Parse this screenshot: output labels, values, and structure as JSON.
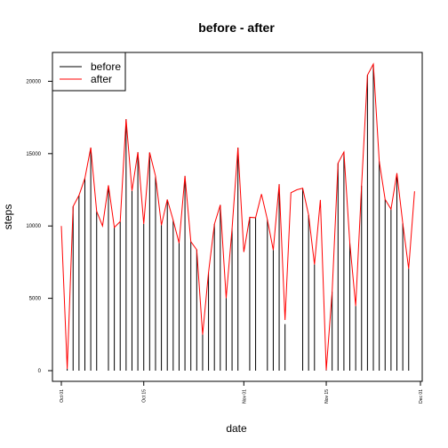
{
  "chart_data": {
    "type": "line",
    "title": "before - after",
    "xlabel": "date",
    "ylabel": "steps",
    "x": [
      "2012-10-01",
      "2012-10-02",
      "2012-10-03",
      "2012-10-04",
      "2012-10-05",
      "2012-10-06",
      "2012-10-07",
      "2012-10-08",
      "2012-10-09",
      "2012-10-10",
      "2012-10-11",
      "2012-10-12",
      "2012-10-13",
      "2012-10-14",
      "2012-10-15",
      "2012-10-16",
      "2012-10-17",
      "2012-10-18",
      "2012-10-19",
      "2012-10-20",
      "2012-10-21",
      "2012-10-22",
      "2012-10-23",
      "2012-10-24",
      "2012-10-25",
      "2012-10-26",
      "2012-10-27",
      "2012-10-28",
      "2012-10-29",
      "2012-10-30",
      "2012-10-31",
      "2012-11-01",
      "2012-11-02",
      "2012-11-03",
      "2012-11-04",
      "2012-11-05",
      "2012-11-06",
      "2012-11-07",
      "2012-11-08",
      "2012-11-09",
      "2012-11-10",
      "2012-11-11",
      "2012-11-12",
      "2012-11-13",
      "2012-11-14",
      "2012-11-15",
      "2012-11-16",
      "2012-11-17",
      "2012-11-18",
      "2012-11-19",
      "2012-11-20",
      "2012-11-21",
      "2012-11-22",
      "2012-11-23",
      "2012-11-24",
      "2012-11-25",
      "2012-11-26",
      "2012-11-27",
      "2012-11-28",
      "2012-11-29",
      "2012-11-30"
    ],
    "series": [
      {
        "name": "before",
        "color": "#000000",
        "style": "histogram",
        "values": [
          0,
          126,
          11352,
          12116,
          13294,
          15420,
          11015,
          0,
          12811,
          9900,
          10304,
          17382,
          12426,
          15098,
          10139,
          15084,
          13452,
          10056,
          11829,
          10395,
          8821,
          13460,
          8918,
          8355,
          2492,
          6778,
          10119,
          11458,
          5018,
          9819,
          15414,
          0,
          10600,
          10571,
          0,
          10439,
          8334,
          12883,
          3219,
          0,
          0,
          12608,
          10765,
          7336,
          0,
          41,
          5441,
          14339,
          15110,
          8841,
          4472,
          12787,
          20427,
          21194,
          14478,
          11834,
          11162,
          13646,
          10183,
          7047,
          0
        ]
      },
      {
        "name": "after",
        "color": "#ff0000",
        "style": "line",
        "values": [
          10000,
          126,
          11352,
          12116,
          13294,
          15420,
          11015,
          10000,
          12811,
          9900,
          10304,
          17382,
          12426,
          15098,
          10139,
          15084,
          13452,
          10056,
          11829,
          10395,
          8821,
          13460,
          8918,
          8355,
          2492,
          6778,
          10119,
          11458,
          5018,
          9819,
          15414,
          8200,
          10600,
          10571,
          12200,
          10439,
          8334,
          12883,
          3500,
          12300,
          12500,
          12608,
          10765,
          7336,
          11800,
          41,
          5441,
          14339,
          15110,
          8841,
          4472,
          12787,
          20427,
          21194,
          14478,
          11834,
          11162,
          13646,
          10183,
          7047,
          12400
        ]
      }
    ],
    "xticks": [
      {
        "label": "Oct 01",
        "date": "2012-10-01"
      },
      {
        "label": "Oct 15",
        "date": "2012-10-15"
      },
      {
        "label": "Nov 01",
        "date": "2012-11-01"
      },
      {
        "label": "Nov 15",
        "date": "2012-11-15"
      },
      {
        "label": "Dec 01",
        "date": "2012-12-01"
      }
    ],
    "yticks": [
      {
        "label": "0",
        "value": 0
      },
      {
        "label": "5000",
        "value": 5000
      },
      {
        "label": "10000",
        "value": 10000
      },
      {
        "label": "15000",
        "value": 15000
      },
      {
        "label": "20000",
        "value": 20000
      }
    ],
    "xlim": [
      "2012-10-01",
      "2012-12-01"
    ],
    "ylim": [
      0,
      21194
    ],
    "grid": false,
    "legend": {
      "position": "top-left",
      "entries": [
        {
          "label": "before",
          "color": "#000000"
        },
        {
          "label": "after",
          "color": "#ff0000"
        }
      ]
    }
  }
}
